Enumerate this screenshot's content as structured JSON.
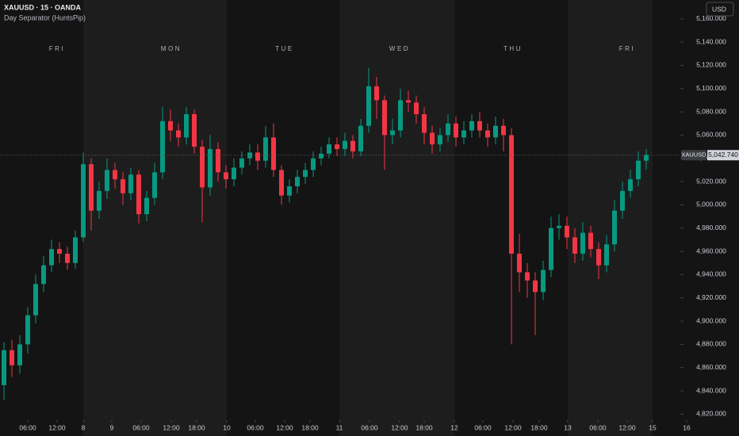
{
  "chart_data": {
    "type": "candlestick",
    "title": "XAUUSD · 15 · OANDA",
    "subtitle": "Day Separator (HuntsPip)",
    "currency": "USD",
    "up_color": "#089981",
    "down_color": "#f23645",
    "open": [
      4845,
      4875,
      4862,
      4880,
      4905,
      4932,
      4948,
      4962,
      4958,
      4950,
      4972,
      5035,
      4995,
      5012,
      5030,
      5022,
      5010,
      5026,
      4992,
      5006,
      5028,
      5072,
      5064,
      5058,
      5078,
      5050,
      5015,
      5048,
      5028,
      5022,
      5032,
      5040,
      5045,
      5038,
      5058,
      5030,
      5008,
      5016,
      5024,
      5030,
      5040,
      5044,
      5052,
      5048,
      5055,
      5046,
      5068,
      5102,
      5090,
      5060,
      5064,
      5090,
      5088,
      5078,
      5062,
      5052,
      5060,
      5070,
      5058,
      5064,
      5072,
      5064,
      5058,
      5068,
      5060,
      4958,
      4942,
      4935,
      4925,
      4944,
      4980,
      4982,
      4972,
      4958,
      4976,
      4962,
      4948,
      4966,
      4995,
      5012,
      5022,
      5038
    ],
    "high": [
      4882,
      4884,
      4888,
      4912,
      4940,
      4956,
      4970,
      4968,
      4964,
      4978,
      5045,
      5040,
      5020,
      5040,
      5036,
      5028,
      5032,
      5030,
      5012,
      5036,
      5084,
      5082,
      5070,
      5084,
      5082,
      5056,
      5060,
      5054,
      5034,
      5040,
      5046,
      5052,
      5052,
      5068,
      5070,
      5034,
      5022,
      5030,
      5036,
      5046,
      5050,
      5058,
      5058,
      5062,
      5060,
      5074,
      5118,
      5110,
      5094,
      5074,
      5100,
      5098,
      5094,
      5084,
      5068,
      5066,
      5078,
      5076,
      5072,
      5078,
      5080,
      5070,
      5076,
      5074,
      5066,
      4975,
      4950,
      4942,
      4952,
      4990,
      4992,
      4990,
      4980,
      4985,
      4982,
      4968,
      4974,
      5004,
      5020,
      5030,
      5046,
      5048
    ],
    "low": [
      4832,
      4852,
      4855,
      4872,
      4898,
      4925,
      4942,
      4950,
      4944,
      4945,
      4968,
      4978,
      4988,
      5005,
      5014,
      5000,
      5004,
      4984,
      4986,
      5000,
      5022,
      5055,
      5050,
      5052,
      5044,
      4985,
      5008,
      5020,
      5014,
      5016,
      5026,
      5034,
      5030,
      5032,
      5024,
      5000,
      5002,
      5010,
      5018,
      5024,
      5034,
      5040,
      5042,
      5042,
      5040,
      5042,
      5062,
      5074,
      5030,
      5052,
      5058,
      5080,
      5070,
      5052,
      5044,
      5046,
      5054,
      5050,
      5052,
      5058,
      5058,
      5050,
      5052,
      5046,
      4880,
      4925,
      4920,
      4888,
      4918,
      4938,
      4970,
      4962,
      4950,
      4952,
      4955,
      4936,
      4942,
      4960,
      4988,
      5006,
      5016,
      5030
    ],
    "close": [
      4875,
      4862,
      4880,
      4905,
      4932,
      4948,
      4962,
      4958,
      4950,
      4972,
      5035,
      4995,
      5012,
      5030,
      5022,
      5010,
      5026,
      4992,
      5006,
      5028,
      5072,
      5064,
      5058,
      5078,
      5050,
      5015,
      5048,
      5028,
      5022,
      5032,
      5040,
      5045,
      5038,
      5058,
      5030,
      5008,
      5016,
      5024,
      5030,
      5040,
      5044,
      5052,
      5048,
      5055,
      5046,
      5068,
      5102,
      5090,
      5060,
      5064,
      5090,
      5088,
      5078,
      5062,
      5052,
      5060,
      5070,
      5058,
      5064,
      5072,
      5064,
      5058,
      5068,
      5060,
      4958,
      4942,
      4935,
      4925,
      4944,
      4980,
      4982,
      4972,
      4958,
      4976,
      4962,
      4948,
      4966,
      4995,
      5012,
      5022,
      5038,
      5043
    ],
    "xlim": [
      -0.5,
      85.3
    ],
    "xticks": [
      {
        "value": 3,
        "label": "06:00"
      },
      {
        "value": 6.7,
        "label": "12:00"
      },
      {
        "value": 10,
        "label": "8"
      },
      {
        "value": 13.6,
        "label": "9"
      },
      {
        "value": 17.3,
        "label": "06:00"
      },
      {
        "value": 21.1,
        "label": "12:00"
      },
      {
        "value": 24.3,
        "label": "18:00"
      },
      {
        "value": 28.1,
        "label": "10"
      },
      {
        "value": 31.7,
        "label": "06:00"
      },
      {
        "value": 35.4,
        "label": "12:00"
      },
      {
        "value": 38.6,
        "label": "18:00"
      },
      {
        "value": 42.3,
        "label": "11"
      },
      {
        "value": 46.1,
        "label": "06:00"
      },
      {
        "value": 49.9,
        "label": "12:00"
      },
      {
        "value": 53,
        "label": "18:00"
      },
      {
        "value": 56.8,
        "label": "12"
      },
      {
        "value": 60.4,
        "label": "06:00"
      },
      {
        "value": 64.2,
        "label": "12:00"
      },
      {
        "value": 67.5,
        "label": "18:00"
      },
      {
        "value": 71.1,
        "label": "13"
      },
      {
        "value": 74.9,
        "label": "06:00"
      },
      {
        "value": 78.6,
        "label": "12:00"
      },
      {
        "value": 81.8,
        "label": "15"
      },
      {
        "value": 86.1,
        "label": "16"
      }
    ],
    "ylim": [
      4816.2,
      5176.2
    ],
    "yticks": [
      {
        "value": 4820,
        "label": "4,820.000"
      },
      {
        "value": 4840,
        "label": "4,840.000"
      },
      {
        "value": 4860,
        "label": "4,860.000"
      },
      {
        "value": 4880,
        "label": "4,880.000"
      },
      {
        "value": 4900,
        "label": "4,900.000"
      },
      {
        "value": 4920,
        "label": "4,920.000"
      },
      {
        "value": 4940,
        "label": "4,940.000"
      },
      {
        "value": 4960,
        "label": "4,960.000"
      },
      {
        "value": 4980,
        "label": "4,980.000"
      },
      {
        "value": 5000,
        "label": "5,000.000"
      },
      {
        "value": 5020,
        "label": "5,020.000"
      },
      {
        "value": 5040,
        "label": "5,040.000"
      },
      {
        "value": 5060,
        "label": "5,060.000"
      },
      {
        "value": 5080,
        "label": "5,080.000"
      },
      {
        "value": 5100,
        "label": "5,100.000"
      },
      {
        "value": 5120,
        "label": "5,120.000"
      },
      {
        "value": 5140,
        "label": "5,140.000"
      },
      {
        "value": 5160,
        "label": "5,160.000"
      }
    ],
    "day_labels": [
      {
        "label": "FRI",
        "x": 6.7
      },
      {
        "label": "MON",
        "x": 21.1
      },
      {
        "label": "TUE",
        "x": 35.4
      },
      {
        "label": "WED",
        "x": 49.9
      },
      {
        "label": "THU",
        "x": 64.2
      },
      {
        "label": "FRI",
        "x": 78.6
      }
    ],
    "shaded_days": [
      [
        10,
        28.1
      ],
      [
        42.3,
        56.8
      ],
      [
        71.1,
        81.8
      ]
    ],
    "last_price": {
      "name": "XAUUSD",
      "value": 5042.74,
      "label": "5,042.740"
    }
  }
}
